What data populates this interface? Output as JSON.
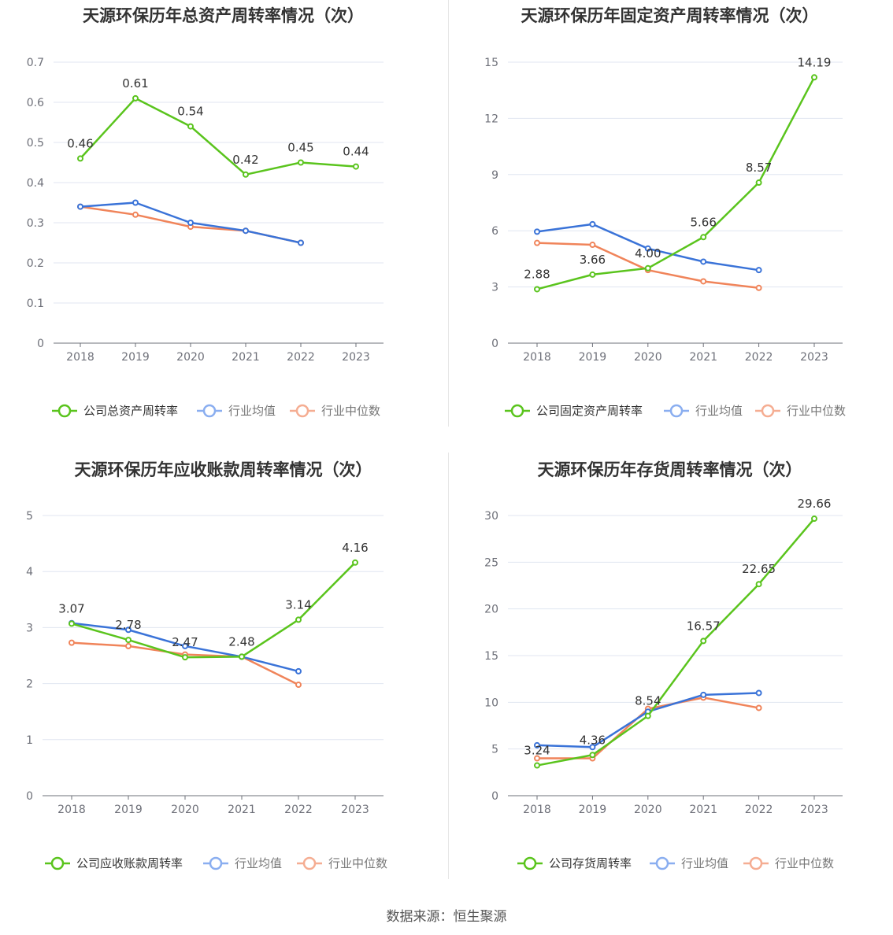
{
  "colors": {
    "company": "#5ac41d",
    "avg": "#3a73d8",
    "median": "#f0845a",
    "avg_legend": "#8aaef0",
    "median_legend": "#f5ad92"
  },
  "source": "数据来源：恒生聚源",
  "chart_data": [
    {
      "type": "line",
      "title": "天源环保历年总资产周转率情况（次）",
      "categories": [
        "2018",
        "2019",
        "2020",
        "2021",
        "2022",
        "2023"
      ],
      "ylim": [
        0,
        0.7
      ],
      "yticks": [
        0,
        0.1,
        0.2,
        0.3,
        0.4,
        0.5,
        0.6,
        0.7
      ],
      "ytick_labels": [
        "0",
        "0.1",
        "0.2",
        "0.3",
        "0.4",
        "0.5",
        "0.6",
        "0.7"
      ],
      "grid": true,
      "legend_position": "bottom",
      "series": [
        {
          "name": "公司总资产周转率",
          "values": [
            0.46,
            0.61,
            0.54,
            0.42,
            0.45,
            0.44
          ],
          "labels": [
            "0.46",
            "0.61",
            "0.54",
            "0.42",
            "0.45",
            "0.44"
          ]
        },
        {
          "name": "行业均值",
          "values": [
            0.34,
            0.35,
            0.3,
            0.28,
            0.25,
            null
          ]
        },
        {
          "name": "行业中位数",
          "values": [
            0.34,
            0.32,
            0.29,
            0.28,
            0.25,
            null
          ]
        }
      ]
    },
    {
      "type": "line",
      "title": "天源环保历年固定资产周转率情况（次）",
      "categories": [
        "2018",
        "2019",
        "2020",
        "2021",
        "2022",
        "2023"
      ],
      "ylim": [
        0,
        15
      ],
      "yticks": [
        0,
        3,
        6,
        9,
        12,
        15
      ],
      "ytick_labels": [
        "0",
        "3",
        "6",
        "9",
        "12",
        "15"
      ],
      "grid": true,
      "legend_position": "bottom",
      "series": [
        {
          "name": "公司固定资产周转率",
          "values": [
            2.88,
            3.66,
            4.0,
            5.66,
            8.57,
            14.19
          ],
          "labels": [
            "2.88",
            "3.66",
            "4.00",
            "5.66",
            "8.57",
            "14.19"
          ]
        },
        {
          "name": "行业均值",
          "values": [
            5.95,
            6.35,
            5.05,
            4.35,
            3.9,
            null
          ]
        },
        {
          "name": "行业中位数",
          "values": [
            5.35,
            5.25,
            3.9,
            3.3,
            2.95,
            null
          ]
        }
      ]
    },
    {
      "type": "line",
      "title": "天源环保历年应收账款周转率情况（次）",
      "categories": [
        "2018",
        "2019",
        "2020",
        "2021",
        "2022",
        "2023"
      ],
      "ylim": [
        0,
        5
      ],
      "yticks": [
        0,
        1,
        2,
        3,
        4,
        5
      ],
      "ytick_labels": [
        "0",
        "1",
        "2",
        "3",
        "4",
        "5"
      ],
      "grid": true,
      "legend_position": "bottom",
      "series": [
        {
          "name": "公司应收账款周转率",
          "values": [
            3.07,
            2.78,
            2.47,
            2.48,
            3.14,
            4.16
          ],
          "labels": [
            "3.07",
            "2.78",
            "2.47",
            "2.48",
            "3.14",
            "4.16"
          ]
        },
        {
          "name": "行业均值",
          "values": [
            3.08,
            2.96,
            2.67,
            2.48,
            2.22,
            null
          ]
        },
        {
          "name": "行业中位数",
          "values": [
            2.73,
            2.67,
            2.52,
            2.48,
            1.98,
            null
          ]
        }
      ]
    },
    {
      "type": "line",
      "title": "天源环保历年存货周转率情况（次）",
      "categories": [
        "2018",
        "2019",
        "2020",
        "2021",
        "2022",
        "2023"
      ],
      "ylim": [
        0,
        30
      ],
      "yticks": [
        0,
        5,
        10,
        15,
        20,
        25,
        30
      ],
      "ytick_labels": [
        "0",
        "5",
        "10",
        "15",
        "20",
        "25",
        "30"
      ],
      "grid": true,
      "legend_position": "bottom",
      "series": [
        {
          "name": "公司存货周转率",
          "values": [
            3.24,
            4.36,
            8.54,
            16.57,
            22.65,
            29.66
          ],
          "labels": [
            "3.24",
            "4.36",
            "8.54",
            "16.57",
            "22.65",
            "29.66"
          ]
        },
        {
          "name": "行业均值",
          "values": [
            5.4,
            5.2,
            9.0,
            10.8,
            11.0,
            null
          ]
        },
        {
          "name": "行业中位数",
          "values": [
            4.0,
            4.0,
            9.3,
            10.5,
            9.4,
            null
          ]
        }
      ]
    }
  ]
}
